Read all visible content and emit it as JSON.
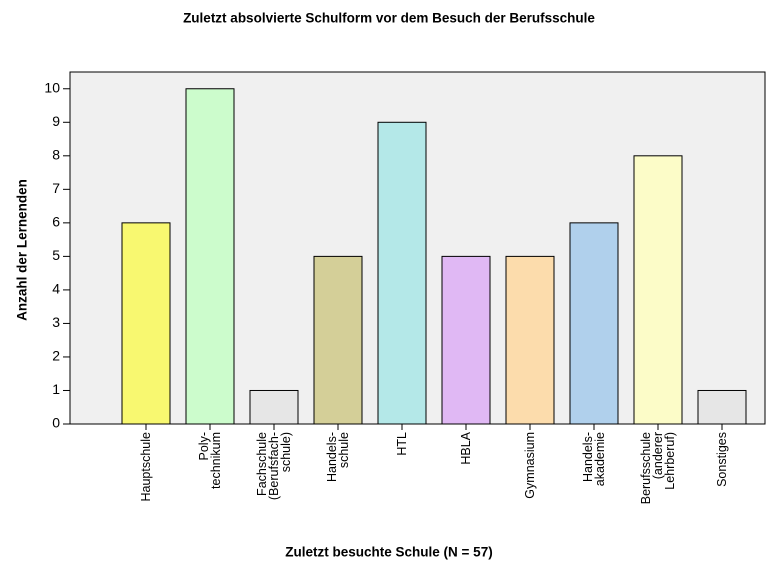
{
  "chart_data": {
    "type": "bar",
    "title": "Zuletzt absolvierte Schulform vor dem Besuch der Berufsschule",
    "x_label": "Zuletzt besuchte Schule (N = 57)",
    "y_label": "Anzahl der Lernenden",
    "categories": [
      "Hauptschule",
      "Poly-\ntechnikum",
      "Fachschule\n(Berufsfach-\nschule)",
      "Handels-\nschule",
      "HTL",
      "HBLA",
      "Gymnasium",
      "Handels-\nakademie",
      "Berufsschule\n(anderer\nLehrberuf)",
      "Sonstiges"
    ],
    "values": [
      6,
      10,
      1,
      5,
      9,
      5,
      5,
      6,
      8,
      1
    ],
    "colors": [
      "#f8f870",
      "#ccfccc",
      "#e6e6e6",
      "#d4cf98",
      "#b4e8e8",
      "#e0b8f4",
      "#fcdcac",
      "#b0d0ec",
      "#fcfcc8",
      "#e6e6e6"
    ],
    "ylim": [
      0,
      10.5
    ],
    "yticks": [
      0,
      1,
      2,
      3,
      4,
      5,
      6,
      7,
      8,
      9,
      10
    ],
    "grid": false
  }
}
